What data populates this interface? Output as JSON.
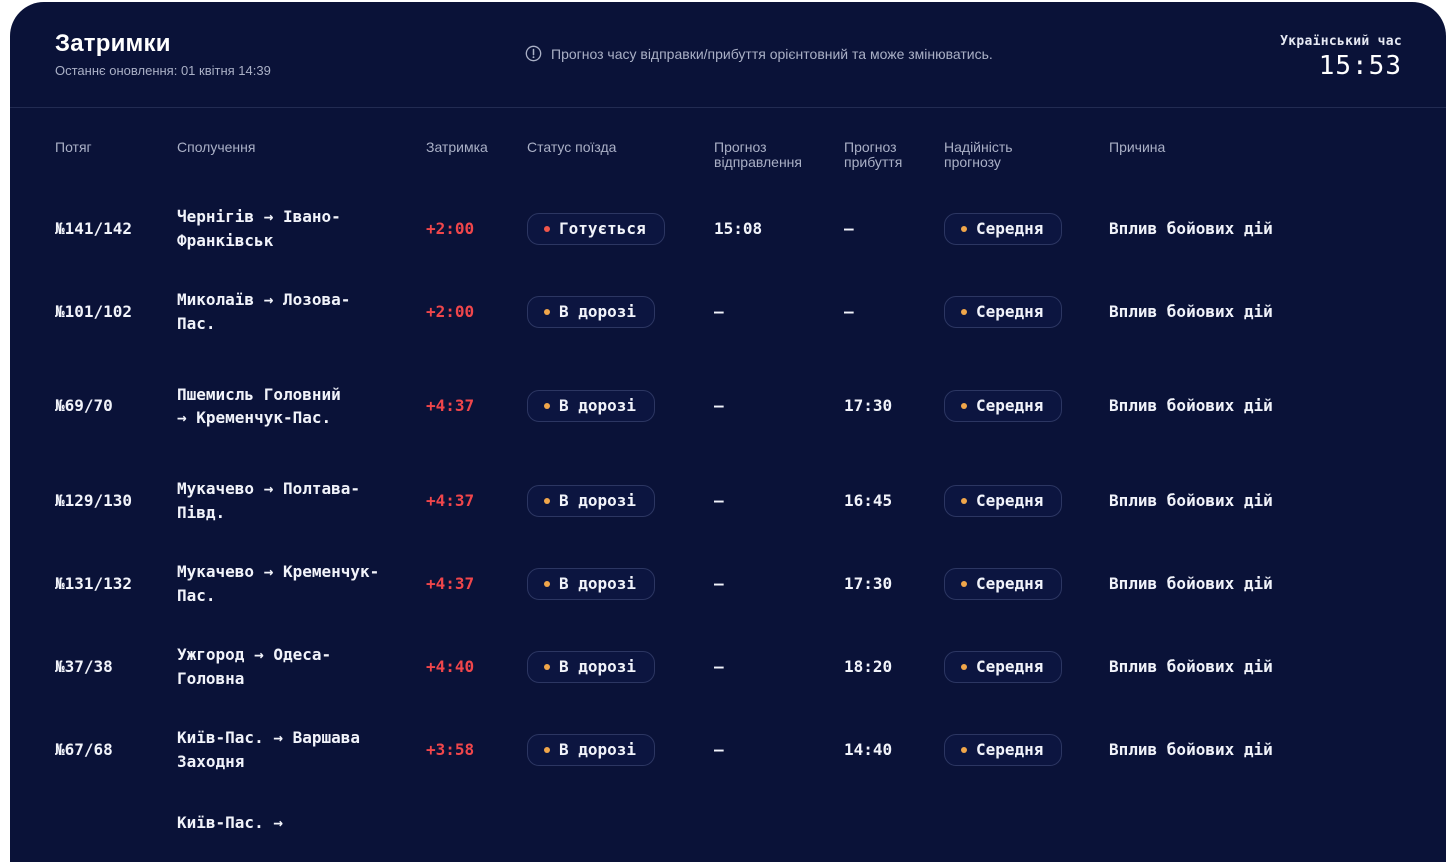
{
  "header": {
    "title": "Затримки",
    "last_update": "Останнє оновлення: 01 квітня 14:39",
    "notice": "Прогноз часу відправки/прибуття орієнтовний та може змінюватись.",
    "notice_icon": "info-circle-icon",
    "clock_label": "Український час",
    "clock_time": "15:53"
  },
  "columns": {
    "train": "Потяг",
    "route": "Сполучення",
    "delay": "Затримка",
    "status": "Статус поїзда",
    "departure_forecast": "Прогноз відправлення",
    "arrival_forecast": "Прогноз прибуття",
    "reliability": "Надійність прогнозу",
    "reason": "Причина"
  },
  "colors": {
    "background": "#0a1238",
    "delay": "#f0464b",
    "dot_preparing": "#f0564b",
    "dot_default": "#f0a64a"
  },
  "rows": [
    {
      "train": "№141/142",
      "route": "Чернігів → Івано-Франківськ",
      "delay": "+2:00",
      "status": "Готується",
      "departure": "15:08",
      "arrival": "—",
      "reliability": "Середня",
      "reason": "Вплив бойових дій"
    },
    {
      "train": "№101/102",
      "route": "Миколаїв → Лозова-Пас.",
      "delay": "+2:00",
      "status": "В дорозі",
      "departure": "—",
      "arrival": "—",
      "reliability": "Середня",
      "reason": "Вплив бойових дій"
    },
    {
      "train": "№69/70",
      "route": "Пшемисль Головний → Кременчук-Пас.",
      "delay": "+4:37",
      "status": "В дорозі",
      "departure": "—",
      "arrival": "17:30",
      "reliability": "Середня",
      "reason": "Вплив бойових дій"
    },
    {
      "train": "№129/130",
      "route": "Мукачево → Полтава-Півд.",
      "delay": "+4:37",
      "status": "В дорозі",
      "departure": "—",
      "arrival": "16:45",
      "reliability": "Середня",
      "reason": "Вплив бойових дій"
    },
    {
      "train": "№131/132",
      "route": "Мукачево → Кременчук-Пас.",
      "delay": "+4:37",
      "status": "В дорозі",
      "departure": "—",
      "arrival": "17:30",
      "reliability": "Середня",
      "reason": "Вплив бойових дій"
    },
    {
      "train": "№37/38",
      "route": "Ужгород → Одеса-Головна",
      "delay": "+4:40",
      "status": "В дорозі",
      "departure": "—",
      "arrival": "18:20",
      "reliability": "Середня",
      "reason": "Вплив бойових дій"
    },
    {
      "train": "№67/68",
      "route": "Київ-Пас. → Варшава Заходня",
      "delay": "+3:58",
      "status": "В дорозі",
      "departure": "—",
      "arrival": "14:40",
      "reliability": "Середня",
      "reason": "Вплив бойових дій"
    },
    {
      "route": "Київ-Пас. →"
    }
  ]
}
